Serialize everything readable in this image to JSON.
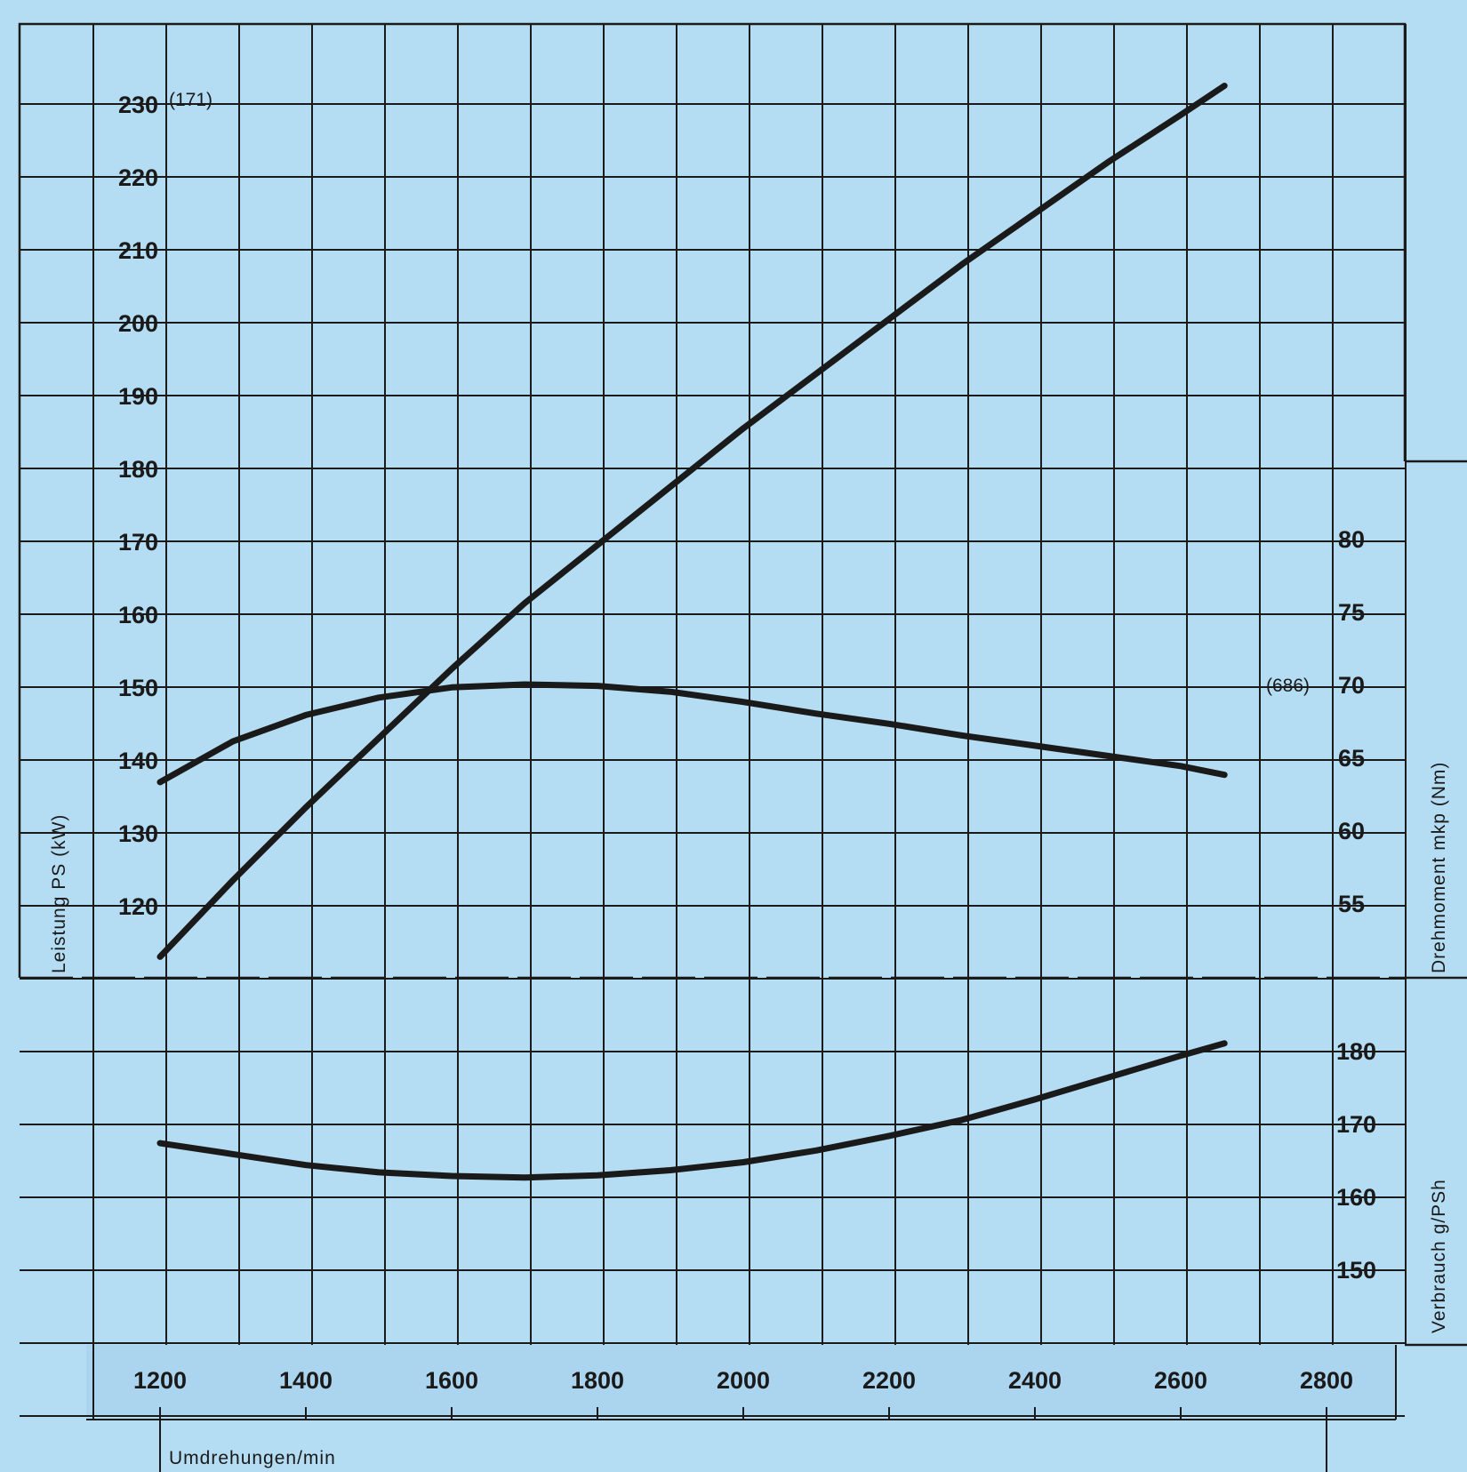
{
  "chart_data": {
    "type": "line",
    "x_label": "Umdrehungen/min",
    "x_ticks": [
      "1200",
      "1400",
      "1600",
      "1800",
      "2000",
      "2200",
      "2400",
      "2600",
      "2800"
    ],
    "x_range": [
      1200,
      2800
    ],
    "left_axis": {
      "label": "Leistung PS (kW)",
      "ticks": [
        "230",
        "220",
        "210",
        "200",
        "190",
        "180",
        "170",
        "160",
        "150",
        "140",
        "130",
        "120"
      ],
      "annotation": "(171)",
      "range": [
        110,
        240
      ]
    },
    "right_torque_axis": {
      "label": "Drehmoment mkp (Nm)",
      "ticks": [
        "80",
        "75",
        "70",
        "65",
        "60",
        "55"
      ],
      "annotation": "(686)",
      "range": [
        50,
        80
      ]
    },
    "right_consumption_axis": {
      "label": "Verbrauch g/PSh",
      "ticks": [
        "180",
        "170",
        "160",
        "150"
      ],
      "range": [
        140,
        190
      ]
    },
    "series": [
      {
        "axis": "left",
        "x": [
          1200,
          1300,
          1400,
          1500,
          1600,
          1700,
          1800,
          1900,
          2000,
          2100,
          2200,
          2300,
          2400,
          2500,
          2600,
          2660
        ],
        "y": [
          113,
          123.5,
          133.5,
          143,
          152.5,
          161.5,
          169.5,
          177.5,
          185.5,
          193,
          200.5,
          208,
          215,
          222,
          228.5,
          232.5
        ]
      },
      {
        "axis": "right_torque",
        "x": [
          1200,
          1300,
          1400,
          1500,
          1600,
          1700,
          1800,
          1900,
          2000,
          2100,
          2200,
          2300,
          2400,
          2500,
          2600,
          2660
        ],
        "y": [
          63.3,
          66.1,
          67.9,
          69.1,
          69.8,
          70.0,
          69.9,
          69.5,
          68.8,
          68.0,
          67.3,
          66.5,
          65.8,
          65.1,
          64.4,
          63.8
        ]
      },
      {
        "axis": "right_consumption",
        "x": [
          1200,
          1300,
          1400,
          1500,
          1600,
          1700,
          1800,
          1900,
          2000,
          2100,
          2200,
          2300,
          2400,
          2500,
          2600,
          2660
        ],
        "y": [
          167.3,
          165.8,
          164.3,
          163.3,
          162.8,
          162.6,
          162.9,
          163.6,
          164.7,
          166.3,
          168.3,
          170.5,
          173.3,
          176.3,
          179.3,
          181.0
        ]
      }
    ]
  }
}
